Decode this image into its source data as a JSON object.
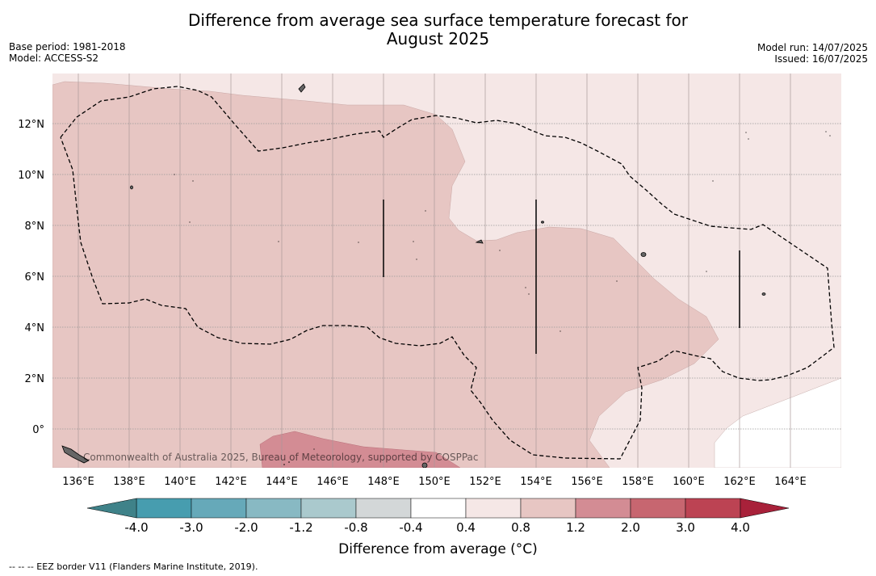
{
  "header": {
    "title_line1": "Difference from average sea surface temperature forecast for",
    "title_line2": "August 2025",
    "base_period": "Base period: 1981-2018",
    "model": "Model: ACCESS-S2",
    "model_run": "Model run: 14/07/2025",
    "issued": "Issued: 16/07/2025"
  },
  "map": {
    "x_ticks": [
      "136°E",
      "138°E",
      "140°E",
      "142°E",
      "144°E",
      "146°E",
      "148°E",
      "150°E",
      "152°E",
      "154°E",
      "156°E",
      "158°E",
      "160°E",
      "162°E",
      "164°E"
    ],
    "y_ticks": [
      "12°N",
      "10°N",
      "8°N",
      "6°N",
      "4°N",
      "2°N",
      "0°"
    ],
    "copyright": "Commonwealth of Australia 2025, Bureau of Meteorology, supported by COSPPac"
  },
  "colorbar": {
    "labels": [
      "-4.0",
      "-3.0",
      "-2.0",
      "-1.2",
      "-0.8",
      "-0.4",
      "0.4",
      "0.8",
      "1.2",
      "2.0",
      "3.0",
      "4.0"
    ],
    "colors": [
      "#479daf",
      "#66a9b9",
      "#88b9c3",
      "#aac9cd",
      "#d3d7d8",
      "#ffffff",
      "#f5e7e6",
      "#e7c6c3",
      "#d38c94",
      "#c76670",
      "#bc4353"
    ],
    "under_color": "#3f8289",
    "over_color": "#a8213a",
    "title": "Difference from average (°C)"
  },
  "legend": {
    "eez_note": "-- -- -- EEZ border V11 (Flanders Marine Institute, 2019)."
  }
}
